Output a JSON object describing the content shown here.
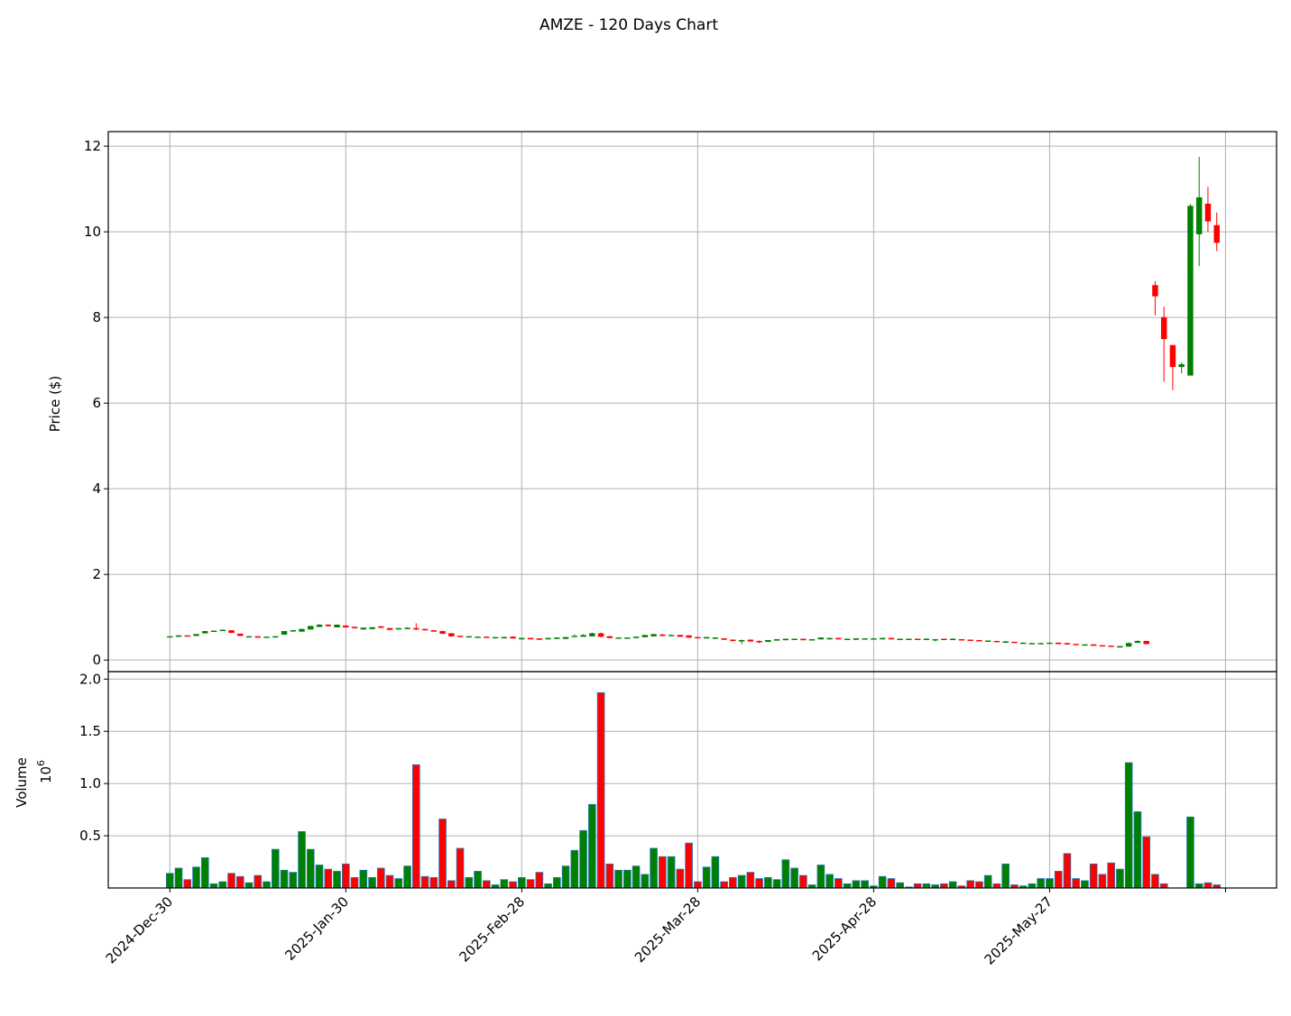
{
  "chart_data": {
    "type": "candlestick",
    "title": "AMZE - 120 Days Chart",
    "price_label": "Price ($)",
    "volume_label": "Volume",
    "volume_multiplier": {
      "base": "10",
      "exponent": "6"
    },
    "up_color": "green",
    "down_color": "red",
    "volume_edge_color": "#1f77b4",
    "grid": true,
    "xlim": [
      -7,
      125.8
    ],
    "xticks": [
      {
        "value": 0,
        "label": "2024-Dec-30"
      },
      {
        "value": 20,
        "label": "2025-Jan-30"
      },
      {
        "value": 40,
        "label": "2025-Feb-28"
      },
      {
        "value": 60,
        "label": "2025-Mar-28"
      },
      {
        "value": 80,
        "label": "2025-Apr-28"
      },
      {
        "value": 100,
        "label": "2025-May-27"
      },
      {
        "value": 120,
        "label": null
      }
    ],
    "ylim": [
      -0.27,
      12.34
    ],
    "yticks": [
      0,
      2,
      4,
      6,
      8,
      10,
      12
    ],
    "volume_ylim": [
      0,
      2.0715
    ],
    "volume_yticks": [
      0.5,
      {
        "value": 1,
        "label": "1.0"
      },
      1.5,
      {
        "value": 2,
        "label": "2.0"
      }
    ],
    "ohlc": [
      [
        0.54,
        0.56,
        0.53,
        0.55
      ],
      [
        0.55,
        0.58,
        0.54,
        0.57
      ],
      [
        0.57,
        0.58,
        0.56,
        0.56
      ],
      [
        0.57,
        0.61,
        0.56,
        0.6
      ],
      [
        0.63,
        0.68,
        0.62,
        0.67
      ],
      [
        0.67,
        0.69,
        0.66,
        0.68
      ],
      [
        0.69,
        0.71,
        0.68,
        0.7
      ],
      [
        0.69,
        0.7,
        0.63,
        0.64
      ],
      [
        0.61,
        0.62,
        0.56,
        0.57
      ],
      [
        0.55,
        0.56,
        0.54,
        0.55
      ],
      [
        0.55,
        0.56,
        0.52,
        0.53
      ],
      [
        0.53,
        0.55,
        0.52,
        0.54
      ],
      [
        0.54,
        0.56,
        0.52,
        0.55
      ],
      [
        0.6,
        0.68,
        0.59,
        0.67
      ],
      [
        0.68,
        0.7,
        0.66,
        0.69
      ],
      [
        0.67,
        0.73,
        0.66,
        0.72
      ],
      [
        0.72,
        0.8,
        0.71,
        0.79
      ],
      [
        0.78,
        0.84,
        0.77,
        0.82
      ],
      [
        0.82,
        0.84,
        0.78,
        0.8
      ],
      [
        0.77,
        0.83,
        0.76,
        0.82
      ],
      [
        0.8,
        0.81,
        0.76,
        0.77
      ],
      [
        0.77,
        0.78,
        0.74,
        0.75
      ],
      [
        0.72,
        0.76,
        0.71,
        0.75
      ],
      [
        0.73,
        0.77,
        0.72,
        0.76
      ],
      [
        0.78,
        0.8,
        0.75,
        0.76
      ],
      [
        0.74,
        0.75,
        0.7,
        0.71
      ],
      [
        0.72,
        0.75,
        0.71,
        0.74
      ],
      [
        0.73,
        0.76,
        0.72,
        0.75
      ],
      [
        0.74,
        0.86,
        0.7,
        0.72
      ],
      [
        0.72,
        0.73,
        0.69,
        0.7
      ],
      [
        0.69,
        0.7,
        0.66,
        0.67
      ],
      [
        0.67,
        0.68,
        0.61,
        0.62
      ],
      [
        0.62,
        0.63,
        0.54,
        0.56
      ],
      [
        0.56,
        0.57,
        0.54,
        0.55
      ],
      [
        0.54,
        0.56,
        0.53,
        0.55
      ],
      [
        0.53,
        0.55,
        0.52,
        0.54
      ],
      [
        0.54,
        0.55,
        0.52,
        0.53
      ],
      [
        0.52,
        0.54,
        0.51,
        0.53
      ],
      [
        0.53,
        0.55,
        0.52,
        0.53
      ],
      [
        0.54,
        0.55,
        0.5,
        0.51
      ],
      [
        0.49,
        0.52,
        0.48,
        0.51
      ],
      [
        0.51,
        0.52,
        0.48,
        0.49
      ],
      [
        0.5,
        0.51,
        0.47,
        0.48
      ],
      [
        0.49,
        0.52,
        0.48,
        0.51
      ],
      [
        0.5,
        0.53,
        0.49,
        0.52
      ],
      [
        0.5,
        0.54,
        0.49,
        0.53
      ],
      [
        0.55,
        0.6,
        0.54,
        0.56
      ],
      [
        0.55,
        0.6,
        0.54,
        0.58
      ],
      [
        0.56,
        0.64,
        0.55,
        0.62
      ],
      [
        0.62,
        0.64,
        0.53,
        0.55
      ],
      [
        0.55,
        0.56,
        0.51,
        0.52
      ],
      [
        0.51,
        0.53,
        0.5,
        0.52
      ],
      [
        0.51,
        0.53,
        0.5,
        0.52
      ],
      [
        0.52,
        0.55,
        0.51,
        0.54
      ],
      [
        0.54,
        0.59,
        0.53,
        0.58
      ],
      [
        0.56,
        0.61,
        0.55,
        0.6
      ],
      [
        0.59,
        0.61,
        0.56,
        0.57
      ],
      [
        0.57,
        0.6,
        0.56,
        0.58
      ],
      [
        0.58,
        0.59,
        0.54,
        0.55
      ],
      [
        0.57,
        0.58,
        0.52,
        0.53
      ],
      [
        0.53,
        0.54,
        0.51,
        0.52
      ],
      [
        0.51,
        0.54,
        0.5,
        0.53
      ],
      [
        0.51,
        0.53,
        0.49,
        0.52
      ],
      [
        0.5,
        0.51,
        0.47,
        0.48
      ],
      [
        0.47,
        0.48,
        0.44,
        0.45
      ],
      [
        0.44,
        0.48,
        0.37,
        0.46
      ],
      [
        0.47,
        0.48,
        0.43,
        0.44
      ],
      [
        0.44,
        0.46,
        0.39,
        0.42
      ],
      [
        0.43,
        0.47,
        0.42,
        0.46
      ],
      [
        0.46,
        0.49,
        0.45,
        0.48
      ],
      [
        0.47,
        0.5,
        0.46,
        0.49
      ],
      [
        0.48,
        0.5,
        0.47,
        0.49
      ],
      [
        0.49,
        0.5,
        0.46,
        0.47
      ],
      [
        0.47,
        0.49,
        0.46,
        0.48
      ],
      [
        0.49,
        0.53,
        0.48,
        0.52
      ],
      [
        0.49,
        0.52,
        0.48,
        0.51
      ],
      [
        0.51,
        0.52,
        0.48,
        0.49
      ],
      [
        0.48,
        0.5,
        0.47,
        0.49
      ],
      [
        0.48,
        0.51,
        0.47,
        0.5
      ],
      [
        0.49,
        0.51,
        0.48,
        0.5
      ],
      [
        0.5,
        0.51,
        0.49,
        0.5
      ],
      [
        0.49,
        0.52,
        0.48,
        0.51
      ],
      [
        0.51,
        0.52,
        0.48,
        0.49
      ],
      [
        0.49,
        0.5,
        0.48,
        0.49
      ],
      [
        0.49,
        0.5,
        0.48,
        0.49
      ],
      [
        0.49,
        0.5,
        0.47,
        0.48
      ],
      [
        0.48,
        0.51,
        0.47,
        0.49
      ],
      [
        0.47,
        0.49,
        0.44,
        0.48
      ],
      [
        0.49,
        0.5,
        0.47,
        0.48
      ],
      [
        0.49,
        0.51,
        0.48,
        0.49
      ],
      [
        0.48,
        0.49,
        0.46,
        0.47
      ],
      [
        0.47,
        0.48,
        0.45,
        0.46
      ],
      [
        0.46,
        0.47,
        0.44,
        0.45
      ],
      [
        0.44,
        0.46,
        0.43,
        0.45
      ],
      [
        0.44,
        0.45,
        0.42,
        0.43
      ],
      [
        0.41,
        0.44,
        0.4,
        0.43
      ],
      [
        0.42,
        0.43,
        0.4,
        0.41
      ],
      [
        0.39,
        0.41,
        0.38,
        0.4
      ],
      [
        0.38,
        0.4,
        0.37,
        0.39
      ],
      [
        0.38,
        0.4,
        0.37,
        0.39
      ],
      [
        0.39,
        0.41,
        0.38,
        0.4
      ],
      [
        0.4,
        0.41,
        0.37,
        0.38
      ],
      [
        0.39,
        0.4,
        0.36,
        0.37
      ],
      [
        0.37,
        0.38,
        0.35,
        0.36
      ],
      [
        0.35,
        0.37,
        0.34,
        0.36
      ],
      [
        0.36,
        0.37,
        0.33,
        0.34
      ],
      [
        0.34,
        0.35,
        0.32,
        0.33
      ],
      [
        0.33,
        0.34,
        0.31,
        0.32
      ],
      [
        0.3,
        0.33,
        0.29,
        0.32
      ],
      [
        0.32,
        0.41,
        0.31,
        0.39
      ],
      [
        0.41,
        0.46,
        0.4,
        0.44
      ],
      [
        0.44,
        0.45,
        0.37,
        0.38
      ],
      [
        8.75,
        8.85,
        8.05,
        8.5
      ],
      [
        8.0,
        8.25,
        6.5,
        7.5
      ],
      [
        7.35,
        7.35,
        6.3,
        6.85
      ],
      [
        6.85,
        6.95,
        6.7,
        6.9
      ],
      [
        6.65,
        10.65,
        6.65,
        10.6
      ],
      [
        9.95,
        11.75,
        9.2,
        10.8
      ],
      [
        10.65,
        11.05,
        10.0,
        10.25
      ],
      [
        10.15,
        10.45,
        9.55,
        9.75
      ]
    ],
    "volume": [
      0.14,
      0.19,
      0.08,
      0.2,
      0.29,
      0.04,
      0.06,
      0.14,
      0.11,
      0.05,
      0.12,
      0.06,
      0.37,
      0.17,
      0.15,
      0.54,
      0.37,
      0.22,
      0.18,
      0.16,
      0.23,
      0.1,
      0.17,
      0.1,
      0.19,
      0.12,
      0.09,
      0.21,
      1.18,
      0.11,
      0.1,
      0.66,
      0.07,
      0.38,
      0.1,
      0.16,
      0.07,
      0.03,
      0.08,
      0.06,
      0.1,
      0.08,
      0.15,
      0.04,
      0.1,
      0.21,
      0.36,
      0.55,
      0.8,
      1.87,
      0.23,
      0.17,
      0.17,
      0.21,
      0.13,
      0.38,
      0.3,
      0.3,
      0.18,
      0.43,
      0.06,
      0.2,
      0.3,
      0.06,
      0.1,
      0.12,
      0.15,
      0.09,
      0.1,
      0.08,
      0.27,
      0.19,
      0.12,
      0.03,
      0.22,
      0.13,
      0.09,
      0.04,
      0.07,
      0.07,
      0.02,
      0.11,
      0.09,
      0.05,
      0.01,
      0.04,
      0.04,
      0.03,
      0.04,
      0.06,
      0.02,
      0.07,
      0.06,
      0.12,
      0.04,
      0.23,
      0.03,
      0.02,
      0.04,
      0.09,
      0.09,
      0.16,
      0.33,
      0.09,
      0.07,
      0.23,
      0.13,
      0.24,
      0.18,
      1.2,
      0.73,
      0.49,
      0.13,
      0.04,
      0,
      0,
      0.68,
      0.04,
      0.05,
      0.03
    ]
  }
}
